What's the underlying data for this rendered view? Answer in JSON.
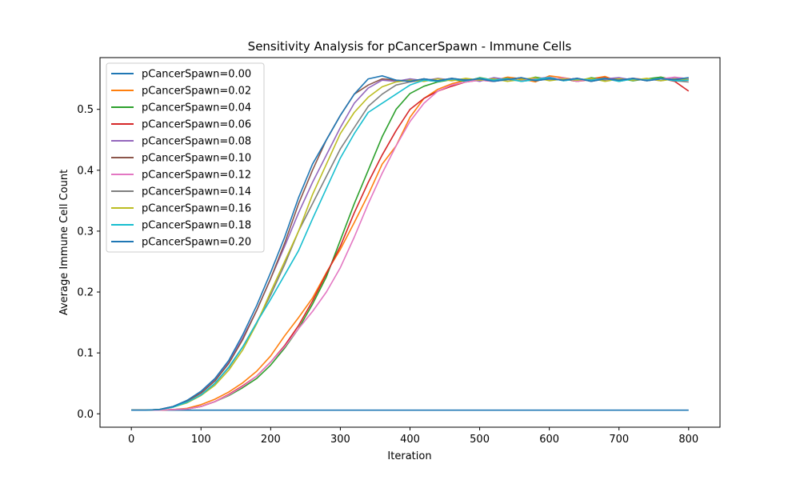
{
  "chart_data": {
    "type": "line",
    "title": "Sensitivity Analysis for pCancerSpawn - Immune Cells",
    "xlabel": "Iteration",
    "ylabel": "Average Immune Cell Count",
    "xlim": [
      -45,
      845
    ],
    "ylim": [
      -0.022,
      0.585
    ],
    "xticks": [
      0,
      100,
      200,
      300,
      400,
      500,
      600,
      700,
      800
    ],
    "yticks": [
      0.0,
      0.1,
      0.2,
      0.3,
      0.4,
      0.5
    ],
    "ytick_labels": [
      "0.0",
      "0.1",
      "0.2",
      "0.3",
      "0.4",
      "0.5"
    ],
    "grid": false,
    "legend_position": "top-left",
    "x": [
      0,
      20,
      40,
      60,
      80,
      100,
      120,
      140,
      160,
      180,
      200,
      220,
      240,
      260,
      280,
      300,
      320,
      340,
      360,
      380,
      400,
      420,
      440,
      460,
      480,
      500,
      520,
      540,
      560,
      580,
      600,
      620,
      640,
      660,
      680,
      700,
      720,
      740,
      760,
      780,
      800
    ],
    "series": [
      {
        "name": "pCancerSpawn=0.00",
        "color": "#1f77b4",
        "values": [
          0.006,
          0.006,
          0.006,
          0.006,
          0.006,
          0.006,
          0.006,
          0.006,
          0.006,
          0.006,
          0.006,
          0.006,
          0.006,
          0.006,
          0.006,
          0.006,
          0.006,
          0.006,
          0.006,
          0.006,
          0.006,
          0.006,
          0.006,
          0.006,
          0.006,
          0.006,
          0.006,
          0.006,
          0.006,
          0.006,
          0.006,
          0.006,
          0.006,
          0.006,
          0.006,
          0.006,
          0.006,
          0.006,
          0.006,
          0.006,
          0.006
        ]
      },
      {
        "name": "pCancerSpawn=0.02",
        "color": "#ff7f0e",
        "values": [
          0.006,
          0.006,
          0.006,
          0.007,
          0.009,
          0.015,
          0.024,
          0.036,
          0.051,
          0.07,
          0.095,
          0.128,
          0.158,
          0.19,
          0.232,
          0.27,
          0.314,
          0.36,
          0.41,
          0.44,
          0.487,
          0.518,
          0.533,
          0.542,
          0.548,
          0.55,
          0.547,
          0.553,
          0.55,
          0.545,
          0.555,
          0.552,
          0.548,
          0.55,
          0.554,
          0.546,
          0.551,
          0.549,
          0.553,
          0.548,
          0.55
        ]
      },
      {
        "name": "pCancerSpawn=0.04",
        "color": "#2ca02c",
        "values": [
          0.006,
          0.006,
          0.006,
          0.007,
          0.008,
          0.012,
          0.02,
          0.03,
          0.043,
          0.058,
          0.08,
          0.108,
          0.14,
          0.18,
          0.225,
          0.285,
          0.345,
          0.4,
          0.455,
          0.5,
          0.526,
          0.538,
          0.545,
          0.549,
          0.546,
          0.552,
          0.548,
          0.551,
          0.547,
          0.553,
          0.549,
          0.55,
          0.546,
          0.552,
          0.548,
          0.551,
          0.547,
          0.55,
          0.553,
          0.548,
          0.55
        ]
      },
      {
        "name": "pCancerSpawn=0.06",
        "color": "#d62728",
        "values": [
          0.006,
          0.006,
          0.006,
          0.007,
          0.008,
          0.012,
          0.02,
          0.032,
          0.046,
          0.062,
          0.085,
          0.112,
          0.145,
          0.185,
          0.23,
          0.275,
          0.33,
          0.38,
          0.425,
          0.465,
          0.5,
          0.518,
          0.53,
          0.538,
          0.545,
          0.548,
          0.546,
          0.55,
          0.547,
          0.551,
          0.548,
          0.55,
          0.546,
          0.549,
          0.552,
          0.547,
          0.55,
          0.548,
          0.551,
          0.546,
          0.53
        ]
      },
      {
        "name": "pCancerSpawn=0.08",
        "color": "#9467bd",
        "values": [
          0.006,
          0.006,
          0.007,
          0.012,
          0.022,
          0.036,
          0.056,
          0.085,
          0.125,
          0.17,
          0.222,
          0.275,
          0.33,
          0.38,
          0.425,
          0.47,
          0.51,
          0.535,
          0.548,
          0.546,
          0.55,
          0.547,
          0.551,
          0.548,
          0.55,
          0.546,
          0.552,
          0.549,
          0.547,
          0.55,
          0.553,
          0.548,
          0.551,
          0.547,
          0.55,
          0.552,
          0.548,
          0.55,
          0.547,
          0.551,
          0.55
        ]
      },
      {
        "name": "pCancerSpawn=0.10",
        "color": "#8c564b",
        "values": [
          0.006,
          0.006,
          0.007,
          0.012,
          0.021,
          0.034,
          0.054,
          0.083,
          0.122,
          0.17,
          0.222,
          0.28,
          0.345,
          0.4,
          0.45,
          0.49,
          0.525,
          0.54,
          0.55,
          0.548,
          0.546,
          0.55,
          0.547,
          0.551,
          0.548,
          0.55,
          0.546,
          0.549,
          0.552,
          0.547,
          0.55,
          0.548,
          0.551,
          0.546,
          0.55,
          0.548,
          0.551,
          0.547,
          0.55,
          0.549,
          0.55
        ]
      },
      {
        "name": "pCancerSpawn=0.12",
        "color": "#e377c2",
        "values": [
          0.006,
          0.006,
          0.006,
          0.007,
          0.008,
          0.012,
          0.02,
          0.031,
          0.045,
          0.062,
          0.085,
          0.11,
          0.14,
          0.168,
          0.2,
          0.24,
          0.29,
          0.345,
          0.395,
          0.44,
          0.48,
          0.51,
          0.53,
          0.54,
          0.545,
          0.548,
          0.546,
          0.55,
          0.547,
          0.551,
          0.548,
          0.552,
          0.546,
          0.55,
          0.549,
          0.547,
          0.551,
          0.548,
          0.55,
          0.553,
          0.55
        ]
      },
      {
        "name": "pCancerSpawn=0.14",
        "color": "#7f7f7f",
        "values": [
          0.006,
          0.006,
          0.007,
          0.011,
          0.019,
          0.031,
          0.05,
          0.076,
          0.11,
          0.15,
          0.195,
          0.245,
          0.3,
          0.345,
          0.39,
          0.435,
          0.47,
          0.505,
          0.525,
          0.54,
          0.545,
          0.548,
          0.546,
          0.55,
          0.547,
          0.551,
          0.548,
          0.55,
          0.546,
          0.549,
          0.552,
          0.547,
          0.55,
          0.548,
          0.551,
          0.546,
          0.55,
          0.548,
          0.551,
          0.547,
          0.545
        ]
      },
      {
        "name": "pCancerSpawn=0.16",
        "color": "#bcbd22",
        "values": [
          0.006,
          0.006,
          0.007,
          0.011,
          0.018,
          0.03,
          0.047,
          0.072,
          0.105,
          0.148,
          0.2,
          0.25,
          0.3,
          0.36,
          0.41,
          0.46,
          0.495,
          0.52,
          0.537,
          0.545,
          0.548,
          0.546,
          0.55,
          0.547,
          0.551,
          0.548,
          0.55,
          0.546,
          0.549,
          0.552,
          0.547,
          0.55,
          0.548,
          0.551,
          0.546,
          0.55,
          0.548,
          0.551,
          0.547,
          0.55,
          0.549
        ]
      },
      {
        "name": "pCancerSpawn=0.18",
        "color": "#17becf",
        "values": [
          0.006,
          0.006,
          0.007,
          0.011,
          0.019,
          0.031,
          0.05,
          0.077,
          0.11,
          0.15,
          0.188,
          0.228,
          0.268,
          0.32,
          0.37,
          0.42,
          0.46,
          0.495,
          0.51,
          0.525,
          0.54,
          0.548,
          0.546,
          0.55,
          0.547,
          0.551,
          0.548,
          0.55,
          0.546,
          0.549,
          0.552,
          0.547,
          0.55,
          0.548,
          0.551,
          0.546,
          0.55,
          0.548,
          0.551,
          0.547,
          0.548
        ]
      },
      {
        "name": "pCancerSpawn=0.20",
        "color": "#1f77b4",
        "values": [
          0.006,
          0.006,
          0.007,
          0.012,
          0.022,
          0.037,
          0.058,
          0.088,
          0.13,
          0.178,
          0.232,
          0.29,
          0.355,
          0.41,
          0.45,
          0.49,
          0.525,
          0.55,
          0.555,
          0.548,
          0.546,
          0.55,
          0.547,
          0.551,
          0.548,
          0.55,
          0.546,
          0.549,
          0.552,
          0.547,
          0.55,
          0.548,
          0.551,
          0.546,
          0.55,
          0.548,
          0.551,
          0.547,
          0.55,
          0.549,
          0.552
        ]
      }
    ]
  }
}
